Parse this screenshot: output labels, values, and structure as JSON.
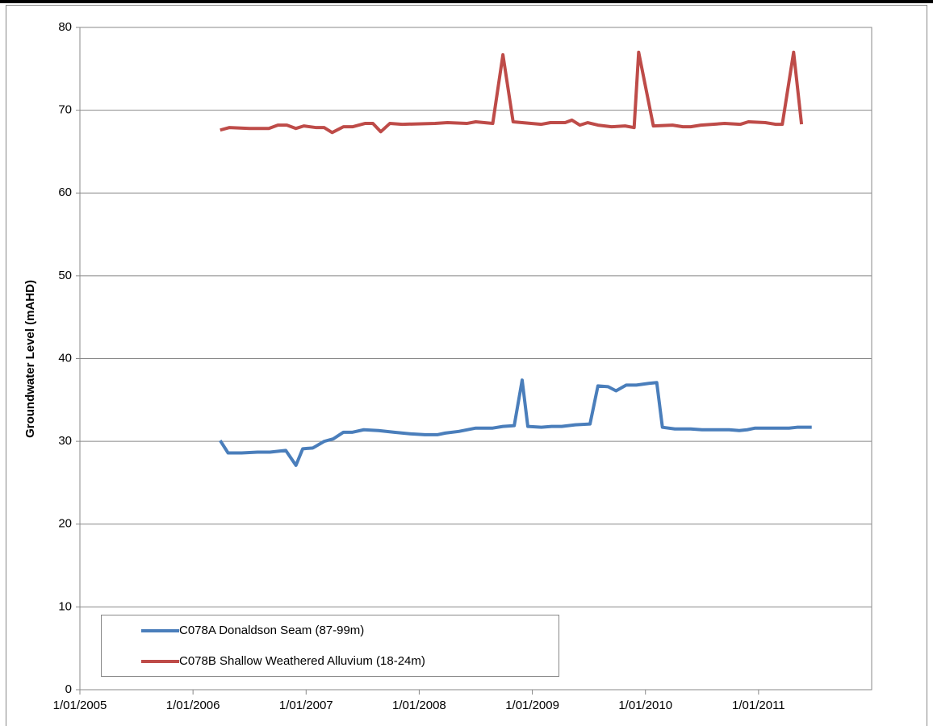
{
  "chart_data": {
    "type": "line",
    "y_label": "Groundwater Level (mAHD)",
    "xlim": [
      2005,
      2012
    ],
    "xticks": [
      {
        "value": 2005,
        "label": "1/01/2005"
      },
      {
        "value": 2006,
        "label": "1/01/2006"
      },
      {
        "value": 2007,
        "label": "1/01/2007"
      },
      {
        "value": 2008,
        "label": "1/01/2008"
      },
      {
        "value": 2009,
        "label": "1/01/2009"
      },
      {
        "value": 2010,
        "label": "1/01/2010"
      },
      {
        "value": 2011,
        "label": "1/01/2011"
      }
    ],
    "ylim": [
      0,
      80
    ],
    "yticks": [
      0,
      10,
      20,
      30,
      40,
      50,
      60,
      70,
      80
    ],
    "grid": true,
    "legend": "bottom-left",
    "series": [
      {
        "name": "C078A Donaldson Seam (87-99m)",
        "color": "#4a7ebb",
        "x": [
          2006.24,
          2006.31,
          2006.43,
          2006.57,
          2006.68,
          2006.82,
          2006.91,
          2006.97,
          2007.06,
          2007.16,
          2007.24,
          2007.33,
          2007.41,
          2007.51,
          2007.64,
          2007.78,
          2007.93,
          2008.05,
          2008.16,
          2008.23,
          2008.35,
          2008.5,
          2008.57,
          2008.65,
          2008.74,
          2008.84,
          2008.91,
          2008.96,
          2009.08,
          2009.17,
          2009.26,
          2009.38,
          2009.51,
          2009.58,
          2009.67,
          2009.74,
          2009.83,
          2009.92,
          2010.03,
          2010.1,
          2010.15,
          2010.26,
          2010.4,
          2010.5,
          2010.63,
          2010.74,
          2010.83,
          2010.9,
          2010.97,
          2011.13,
          2011.27,
          2011.34,
          2011.47
        ],
        "values": [
          30.1,
          28.6,
          28.6,
          28.7,
          28.7,
          28.9,
          27.1,
          29.1,
          29.2,
          30.0,
          30.3,
          31.1,
          31.1,
          31.4,
          31.3,
          31.1,
          30.9,
          30.8,
          30.8,
          31.0,
          31.2,
          31.6,
          31.6,
          31.6,
          31.8,
          31.9,
          37.4,
          31.8,
          31.7,
          31.8,
          31.8,
          32.0,
          32.1,
          36.7,
          36.6,
          36.1,
          36.8,
          36.8,
          37.0,
          37.1,
          31.7,
          31.5,
          31.5,
          31.4,
          31.4,
          31.4,
          31.3,
          31.4,
          31.6,
          31.6,
          31.6,
          31.7,
          31.7
        ]
      },
      {
        "name": "C078B Shallow Weathered Alluvium (18-24m)",
        "color": "#be4b48",
        "x": [
          2006.24,
          2006.32,
          2006.5,
          2006.67,
          2006.75,
          2006.83,
          2006.91,
          2006.98,
          2007.09,
          2007.16,
          2007.23,
          2007.33,
          2007.41,
          2007.52,
          2007.59,
          2007.66,
          2007.74,
          2007.85,
          2008.14,
          2008.25,
          2008.42,
          2008.5,
          2008.65,
          2008.74,
          2008.83,
          2008.99,
          2009.08,
          2009.16,
          2009.29,
          2009.35,
          2009.42,
          2009.49,
          2009.58,
          2009.7,
          2009.82,
          2009.9,
          2009.94,
          2010.07,
          2010.24,
          2010.33,
          2010.4,
          2010.49,
          2010.7,
          2010.84,
          2010.91,
          2011.06,
          2011.15,
          2011.21,
          2011.31,
          2011.38
        ],
        "values": [
          67.6,
          67.9,
          67.8,
          67.8,
          68.2,
          68.2,
          67.8,
          68.1,
          67.9,
          67.9,
          67.3,
          68.0,
          68.0,
          68.4,
          68.4,
          67.4,
          68.4,
          68.3,
          68.4,
          68.5,
          68.4,
          68.6,
          68.4,
          76.7,
          68.6,
          68.4,
          68.3,
          68.5,
          68.5,
          68.8,
          68.2,
          68.5,
          68.2,
          68.0,
          68.1,
          67.9,
          77.0,
          68.1,
          68.2,
          68.0,
          68.0,
          68.2,
          68.4,
          68.3,
          68.6,
          68.5,
          68.3,
          68.3,
          77.0,
          68.3
        ]
      }
    ]
  }
}
